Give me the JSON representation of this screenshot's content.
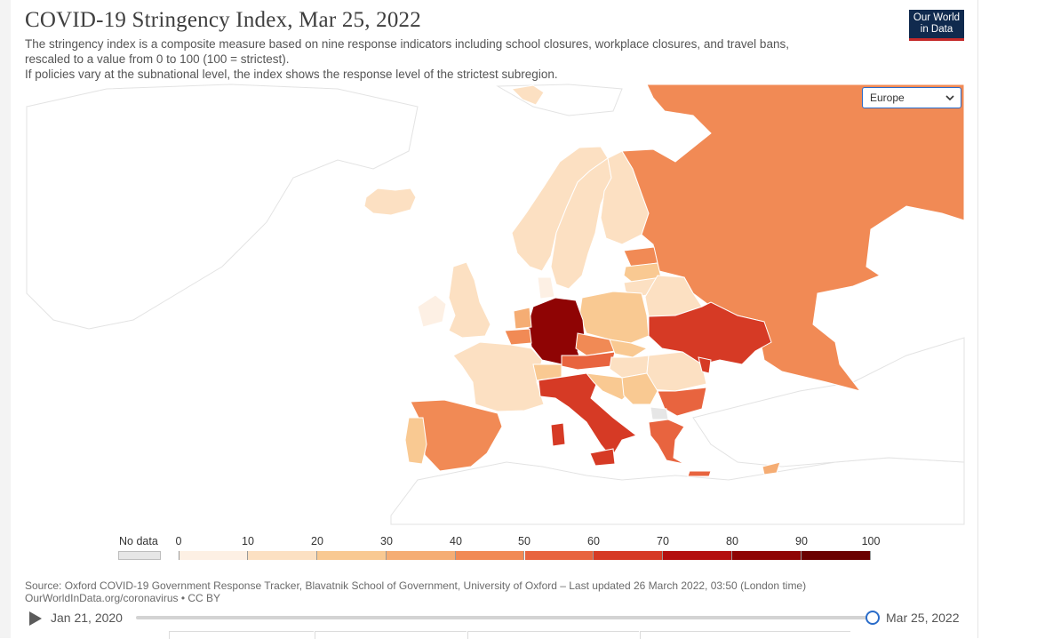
{
  "header": {
    "title": "COVID-19 Stringency Index, Mar 25, 2022",
    "subtitle_lines": [
      "The stringency index is a composite measure based on nine response indicators including school closures, workplace closures, and travel bans,",
      "rescaled to a value from 0 to 100 (100 = strictest).",
      "If policies vary at the subnational level, the index shows the response level of the strictest subregion."
    ]
  },
  "logo": {
    "line1": "Our World",
    "line2": "in Data"
  },
  "region_select": {
    "value": "Europe"
  },
  "legend": {
    "no_data_label": "No data",
    "ticks": [
      "0",
      "10",
      "20",
      "30",
      "40",
      "50",
      "60",
      "70",
      "80",
      "90",
      "100"
    ],
    "colors": [
      "#fdf0e4",
      "#fce0c2",
      "#f9c992",
      "#f5ad74",
      "#f18a55",
      "#e8643f",
      "#d63a25",
      "#b40f0f",
      "#8f0404",
      "#6b0000"
    ],
    "no_data_color": "#e6e6e6"
  },
  "colors": {
    "land_background": "#ffffff",
    "land_outline": "#e3e3e3",
    "country_outline": "#ffffff"
  },
  "map_data": {
    "regions": [
      {
        "name": "Russia",
        "value": 47
      },
      {
        "name": "Germany",
        "value": 83
      },
      {
        "name": "Italy",
        "value": 66
      },
      {
        "name": "Ukraine",
        "value": 68
      },
      {
        "name": "Spain",
        "value": 44
      },
      {
        "name": "France",
        "value": 15
      },
      {
        "name": "Finland",
        "value": 18
      },
      {
        "name": "Poland",
        "value": 24
      },
      {
        "name": "Greece",
        "value": 55
      },
      {
        "name": "Romania",
        "value": 17
      },
      {
        "name": "Austria",
        "value": 52
      },
      {
        "name": "Norway",
        "value": 12
      },
      {
        "name": "Sweden",
        "value": 11
      },
      {
        "name": "United Kingdom",
        "value": 14
      },
      {
        "name": "Iceland",
        "value": 19
      }
    ]
  },
  "source": {
    "line1": "Source: Oxford COVID-19 Government Response Tracker, Blavatnik School of Government, University of Oxford – Last updated 26 March 2022, 03:50 (London time)",
    "line2": "OurWorldInData.org/coronavirus • CC BY"
  },
  "timeline": {
    "start": "Jan 21, 2020",
    "end": "Mar 25, 2022",
    "position_fraction": 1.0
  }
}
